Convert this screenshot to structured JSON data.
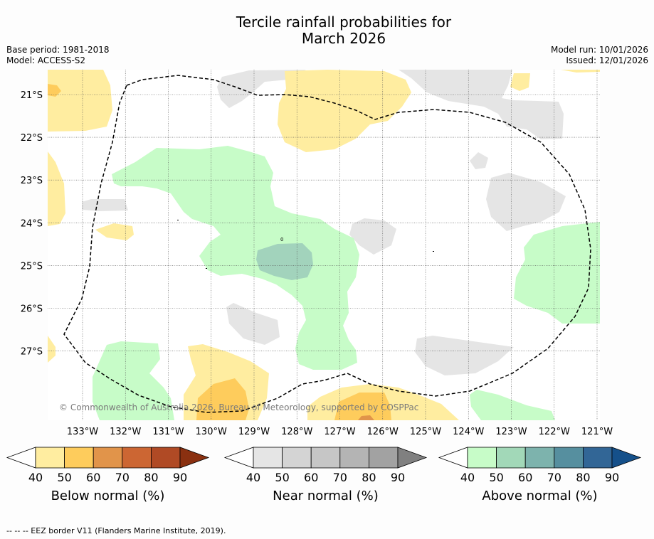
{
  "title": {
    "line1": "Tercile rainfall probabilities for",
    "line2": "March 2026"
  },
  "meta_left": {
    "base_period": "Base period: 1981-2018",
    "model": "Model: ACCESS-S2"
  },
  "meta_right": {
    "model_run": "Model run: 10/01/2026",
    "issued": "Issued: 12/01/2026"
  },
  "map": {
    "lat_labels": [
      "21°S",
      "22°S",
      "23°S",
      "24°S",
      "25°S",
      "26°S",
      "27°S"
    ],
    "lon_labels": [
      "133°W",
      "132°W",
      "131°W",
      "130°W",
      "129°W",
      "128°W",
      "127°W",
      "126°W",
      "125°W",
      "124°W",
      "123°W",
      "122°W",
      "121°W"
    ],
    "copyright": "© Commonwealth of Australia 2026, Bureau of Meteorology, supported by COSPPac",
    "dot_label": "0"
  },
  "colorbars": [
    {
      "name": "below",
      "title": "Below normal (%)",
      "ticks": [
        "40",
        "50",
        "60",
        "70",
        "80",
        "90"
      ],
      "colors": [
        "#ffeda0",
        "#fecc5c",
        "#e1944a",
        "#cc6633",
        "#b04a25",
        "#8a3010"
      ]
    },
    {
      "name": "near",
      "title": "Near normal (%)",
      "ticks": [
        "40",
        "50",
        "60",
        "70",
        "80",
        "90"
      ],
      "colors": [
        "#e5e5e5",
        "#d4d4d4",
        "#c6c6c6",
        "#b4b4b4",
        "#a2a2a2",
        "#808080"
      ]
    },
    {
      "name": "above",
      "title": "Above normal (%)",
      "ticks": [
        "40",
        "50",
        "60",
        "70",
        "80",
        "90"
      ],
      "colors": [
        "#c7fcc8",
        "#a2d8b8",
        "#7db3ad",
        "#568f9f",
        "#326696",
        "#15508a"
      ]
    }
  ],
  "category_colors": {
    "below_40": "#ffeda0",
    "below_50": "#fecc5c",
    "below_60": "#e1944a",
    "near_40": "#e5e5e5",
    "above_40": "#c7fcc8",
    "above_50": "#a2d3bc"
  },
  "footnote": "-- -- -- EEZ border V11 (Flanders Marine Institute, 2019)."
}
